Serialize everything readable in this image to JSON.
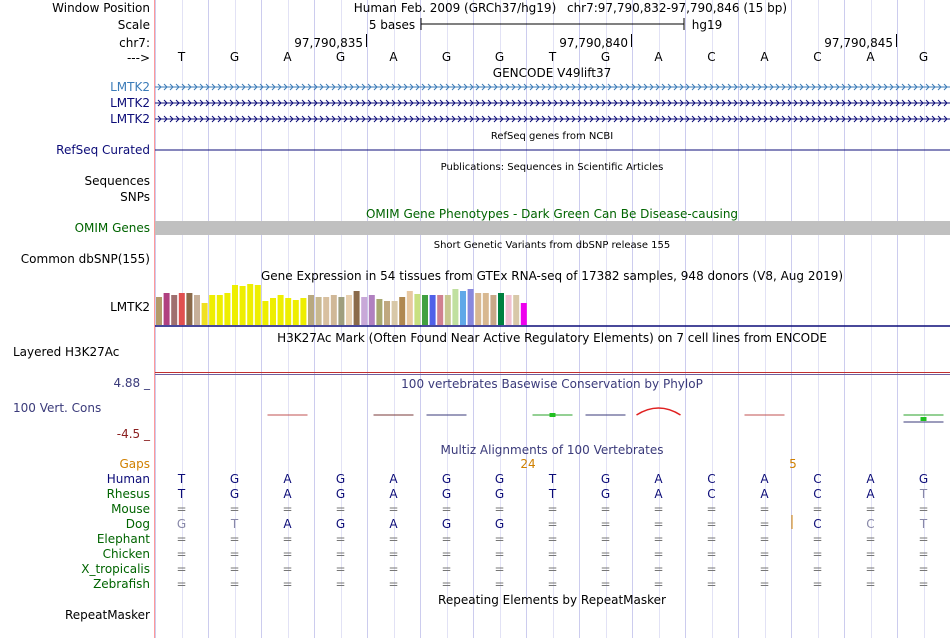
{
  "labels": {
    "window_position": "Window Position",
    "scale": "Scale",
    "chrom": "chr7:",
    "strand": "--->",
    "gencode_1": "LMTK2",
    "gencode_2": "LMTK2",
    "gencode_3": "LMTK2",
    "refseq": "RefSeq Curated",
    "sequences": "Sequences",
    "snps": "SNPs",
    "omim": "OMIM Genes",
    "dbsnp": "Common dbSNP(155)",
    "gtex": "LMTK2",
    "h3k27ac": "Layered H3K27Ac",
    "phylop_max": "4.88 _",
    "phylop_name": "100 Vert. Cons",
    "phylop_min": "-4.5 _",
    "gaps": "Gaps",
    "species": [
      "Human",
      "Rhesus",
      "Mouse",
      "Dog",
      "Elephant",
      "Chicken",
      "X_tropicalis",
      "Zebrafish"
    ],
    "repeatmasker": "RepeatMasker"
  },
  "header": {
    "assembly": "Human Feb. 2009 (GRCh37/hg19)",
    "position": "chr7:97,790,832-97,790,846 (15 bp)",
    "scale_text": "5 bases",
    "scale_db": "hg19",
    "coords": [
      "97,790,835",
      "97,790,840",
      "97,790,845"
    ]
  },
  "bases": [
    "T",
    "G",
    "A",
    "G",
    "A",
    "G",
    "G",
    "T",
    "G",
    "A",
    "C",
    "A",
    "C",
    "A",
    "G"
  ],
  "titles": {
    "gencode": "GENCODE V49lift37",
    "refseq": "RefSeq genes from NCBI",
    "publications": "Publications: Sequences in Scientific Articles",
    "omim": "OMIM Gene Phenotypes - Dark Green Can Be Disease-causing",
    "dbsnp": "Short Genetic Variants from dbSNP release 155",
    "gtex": "Gene Expression in 54 tissues from GTEx RNA-seq of 17382 samples, 948 donors (V8, Aug 2019)",
    "h3k27ac": "H3K27Ac Mark (Often Found Near Active Regulatory Elements) on 7 cell lines from ENCODE",
    "phylop": "100 vertebrates Basewise Conservation by PhyloP",
    "multiz": "Multiz Alignments of 100 Vertebrates",
    "repeatmasker": "Repeating Elements by RepeatMasker"
  },
  "gaps": [
    {
      "pos": 7,
      "value": "24"
    },
    {
      "pos": 12,
      "value": "5"
    }
  ],
  "alignment": [
    [
      "T",
      "G",
      "A",
      "G",
      "A",
      "G",
      "G",
      "T",
      "G",
      "A",
      "C",
      "A",
      "C",
      "A",
      "G"
    ],
    [
      "T",
      "G",
      "A",
      "G",
      "A",
      "G",
      "G",
      "T",
      "G",
      "A",
      "C",
      "A",
      "C",
      "A",
      "T"
    ],
    [
      "=",
      "=",
      "=",
      "=",
      "=",
      "=",
      "=",
      "=",
      "=",
      "=",
      "=",
      "=",
      "=",
      "=",
      "="
    ],
    [
      "G",
      "T",
      "A",
      "G",
      "A",
      "G",
      "G",
      "=",
      "=",
      "=",
      "=",
      "=",
      "C",
      "C",
      "T"
    ],
    [
      "=",
      "=",
      "=",
      "=",
      "=",
      "=",
      "=",
      "=",
      "=",
      "=",
      "=",
      "=",
      "=",
      "=",
      "="
    ],
    [
      "=",
      "=",
      "=",
      "=",
      "=",
      "=",
      "=",
      "=",
      "=",
      "=",
      "=",
      "=",
      "=",
      "=",
      "="
    ],
    [
      "=",
      "=",
      "=",
      "=",
      "=",
      "=",
      "=",
      "=",
      "=",
      "=",
      "=",
      "=",
      "=",
      "=",
      "="
    ],
    [
      "=",
      "=",
      "=",
      "=",
      "=",
      "=",
      "=",
      "=",
      "=",
      "=",
      "=",
      "=",
      "=",
      "=",
      "="
    ]
  ],
  "alignment_faded": [
    [
      0,
      0,
      0,
      0,
      0,
      0,
      0,
      0,
      0,
      0,
      0,
      0,
      0,
      0,
      0
    ],
    [
      0,
      0,
      0,
      0,
      0,
      0,
      0,
      0,
      0,
      0,
      0,
      0,
      0,
      0,
      1
    ],
    [
      0,
      0,
      0,
      0,
      0,
      0,
      0,
      0,
      0,
      0,
      0,
      0,
      0,
      0,
      0
    ],
    [
      1,
      1,
      0,
      0,
      0,
      0,
      0,
      0,
      0,
      0,
      0,
      0,
      0,
      1,
      1
    ],
    [
      0,
      0,
      0,
      0,
      0,
      0,
      0,
      0,
      0,
      0,
      0,
      0,
      0,
      0,
      0
    ],
    [
      0,
      0,
      0,
      0,
      0,
      0,
      0,
      0,
      0,
      0,
      0,
      0,
      0,
      0,
      0
    ],
    [
      0,
      0,
      0,
      0,
      0,
      0,
      0,
      0,
      0,
      0,
      0,
      0,
      0,
      0,
      0
    ],
    [
      0,
      0,
      0,
      0,
      0,
      0,
      0,
      0,
      0,
      0,
      0,
      0,
      0,
      0,
      0
    ]
  ],
  "gtex_bars": [
    {
      "color": "#b39b6a",
      "value": 0.28
    },
    {
      "color": "#b04080",
      "value": 0.32
    },
    {
      "color": "#9f6f6f",
      "value": 0.3
    },
    {
      "color": "#e05050",
      "value": 0.32
    },
    {
      "color": "#8a6a4a",
      "value": 0.32
    },
    {
      "color": "#c7b09a",
      "value": 0.3
    },
    {
      "color": "#f0e020",
      "value": 0.22
    },
    {
      "color": "#eeee00",
      "value": 0.3
    },
    {
      "color": "#eeee00",
      "value": 0.3
    },
    {
      "color": "#eeee00",
      "value": 0.32
    },
    {
      "color": "#eeee00",
      "value": 0.4
    },
    {
      "color": "#eeee00",
      "value": 0.39
    },
    {
      "color": "#eeee00",
      "value": 0.41
    },
    {
      "color": "#eeee00",
      "value": 0.4
    },
    {
      "color": "#eeee00",
      "value": 0.24
    },
    {
      "color": "#eeee00",
      "value": 0.27
    },
    {
      "color": "#eeee00",
      "value": 0.3
    },
    {
      "color": "#eeee00",
      "value": 0.27
    },
    {
      "color": "#eeee00",
      "value": 0.25
    },
    {
      "color": "#eeee00",
      "value": 0.27
    },
    {
      "color": "#b8a880",
      "value": 0.3
    },
    {
      "color": "#c8b890",
      "value": 0.28
    },
    {
      "color": "#d8c0a0",
      "value": 0.28
    },
    {
      "color": "#d0b898",
      "value": 0.3
    },
    {
      "color": "#9e9e7e",
      "value": 0.28
    },
    {
      "color": "#e8d0b0",
      "value": 0.3
    },
    {
      "color": "#8a6a4a",
      "value": 0.34
    },
    {
      "color": "#c8a8d8",
      "value": 0.28
    },
    {
      "color": "#b080c0",
      "value": 0.3
    },
    {
      "color": "#a8a870",
      "value": 0.26
    },
    {
      "color": "#c0a880",
      "value": 0.24
    },
    {
      "color": "#d8c8a8",
      "value": 0.24
    },
    {
      "color": "#b08850",
      "value": 0.28
    },
    {
      "color": "#e8c8a0",
      "value": 0.34
    },
    {
      "color": "#c8e080",
      "value": 0.31
    },
    {
      "color": "#40a040",
      "value": 0.3
    },
    {
      "color": "#5060e8",
      "value": 0.3
    },
    {
      "color": "#d08090",
      "value": 0.3
    },
    {
      "color": "#c8c890",
      "value": 0.3
    },
    {
      "color": "#c0e0a0",
      "value": 0.36
    },
    {
      "color": "#60a8e8",
      "value": 0.34
    },
    {
      "color": "#8888dd",
      "value": 0.36
    },
    {
      "color": "#d8b890",
      "value": 0.32
    },
    {
      "color": "#d8b890",
      "value": 0.32
    },
    {
      "color": "#c8a888",
      "value": 0.3
    },
    {
      "color": "#008040",
      "value": 0.32
    },
    {
      "color": "#f0c0d0",
      "value": 0.3
    },
    {
      "color": "#d8c8a8",
      "value": 0.3
    },
    {
      "color": "#ee00ee",
      "value": 0.22
    }
  ],
  "colors": {
    "grid": "#ccccee",
    "divider": "#ff9999",
    "gencode": "#0c0c78",
    "gencode_first": "#3c7cb8",
    "refseq": "#0c0c78",
    "omim_title": "#006400",
    "omim_band": "#c0c0c0",
    "phylop_title": "#3a3a7a",
    "phylop_max": "#3a3a7a",
    "phylop_min": "#8b2020",
    "gaps": "#d08000",
    "species_human": "#0c0c78",
    "species_other": "#006400",
    "faded": "#8888a8",
    "h3k27ac_line": "#c03030"
  }
}
